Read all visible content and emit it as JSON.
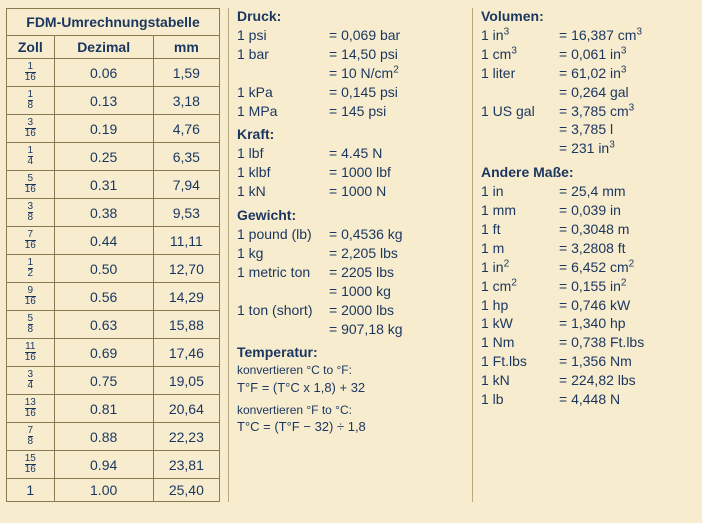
{
  "table": {
    "title": "FDM-Umrechnungstabelle",
    "columns": [
      "Zoll",
      "Dezimal",
      "mm"
    ],
    "rows": [
      {
        "num": "1",
        "den": "16",
        "dec": "0.06",
        "mm": "1,59"
      },
      {
        "num": "1",
        "den": "8",
        "dec": "0.13",
        "mm": "3,18"
      },
      {
        "num": "3",
        "den": "16",
        "dec": "0.19",
        "mm": "4,76"
      },
      {
        "num": "1",
        "den": "4",
        "dec": "0.25",
        "mm": "6,35"
      },
      {
        "num": "5",
        "den": "16",
        "dec": "0.31",
        "mm": "7,94"
      },
      {
        "num": "3",
        "den": "8",
        "dec": "0.38",
        "mm": "9,53"
      },
      {
        "num": "7",
        "den": "16",
        "dec": "0.44",
        "mm": "11,11"
      },
      {
        "num": "1",
        "den": "2",
        "dec": "0.50",
        "mm": "12,70"
      },
      {
        "num": "9",
        "den": "16",
        "dec": "0.56",
        "mm": "14,29"
      },
      {
        "num": "5",
        "den": "8",
        "dec": "0.63",
        "mm": "15,88"
      },
      {
        "num": "11",
        "den": "16",
        "dec": "0.69",
        "mm": "17,46"
      },
      {
        "num": "3",
        "den": "4",
        "dec": "0.75",
        "mm": "19,05"
      },
      {
        "num": "13",
        "den": "16",
        "dec": "0.81",
        "mm": "20,64"
      },
      {
        "num": "7",
        "den": "8",
        "dec": "0.88",
        "mm": "22,23"
      },
      {
        "num": "15",
        "den": "16",
        "dec": "0.94",
        "mm": "23,81"
      },
      {
        "whole": "1",
        "dec": "1.00",
        "mm": "25,40"
      }
    ]
  },
  "col2": {
    "druck": {
      "title": "Druck:",
      "rows": [
        {
          "l": "1 psi",
          "r": "= 0,069 bar"
        },
        {
          "l": "1 bar",
          "r": "= 14,50 psi"
        },
        {
          "l": "",
          "r": "= 10 N/cm²"
        },
        {
          "l": "1 kPa",
          "r": "= 0,145 psi"
        },
        {
          "l": "1 MPa",
          "r": "= 145 psi"
        }
      ]
    },
    "kraft": {
      "title": "Kraft:",
      "rows": [
        {
          "l": "1 lbf",
          "r": "= 4.45 N"
        },
        {
          "l": "1 klbf",
          "r": "= 1000 lbf"
        },
        {
          "l": "1 kN",
          "r": "= 1000 N"
        }
      ]
    },
    "gewicht": {
      "title": "Gewicht:",
      "rows": [
        {
          "l": "1 pound (lb)",
          "r": "= 0,4536 kg"
        },
        {
          "l": "1 kg",
          "r": "= 2,205 lbs"
        },
        {
          "l": "1 metric ton",
          "r": "= 2205 lbs"
        },
        {
          "l": "",
          "r": "= 1000 kg"
        },
        {
          "l": "1 ton (short)",
          "r": "= 2000 lbs"
        },
        {
          "l": "",
          "r": "= 907,18 kg"
        }
      ]
    },
    "temp": {
      "title": "Temperatur:",
      "conv1_label": "konvertieren  °C to °F:",
      "conv1_formula": "T°F = (T°C x 1,8) + 32",
      "conv2_label": "konvertieren  °F to °C:",
      "conv2_formula": "T°C = (T°F − 32) ÷ 1,8"
    }
  },
  "col3": {
    "volumen": {
      "title": "Volumen:",
      "rows": [
        {
          "l": "1 in³",
          "r": "= 16,387 cm³"
        },
        {
          "l": "1 cm³",
          "r": "= 0,061 in³"
        },
        {
          "l": "1 liter",
          "r": "= 61,02 in³"
        },
        {
          "l": "",
          "r": "= 0,264 gal"
        },
        {
          "l": "1 US gal",
          "r": "= 3,785 cm³"
        },
        {
          "l": "",
          "r": "= 3,785 l"
        },
        {
          "l": "",
          "r": "= 231 in³"
        }
      ]
    },
    "andere": {
      "title": "Andere Maße:",
      "rows": [
        {
          "l": "1 in",
          "r": "= 25,4 mm"
        },
        {
          "l": "1 mm",
          "r": "= 0,039 in"
        },
        {
          "l": "1 ft",
          "r": "= 0,3048 m"
        },
        {
          "l": "1 m",
          "r": "= 3,2808 ft"
        },
        {
          "l": "1 in²",
          "r": "= 6,452 cm²"
        },
        {
          "l": "1 cm²",
          "r": "= 0,155 in²"
        },
        {
          "l": "1 hp",
          "r": "= 0,746 kW"
        },
        {
          "l": "1 kW",
          "r": "= 1,340 hp"
        },
        {
          "l": "1 Nm",
          "r": "= 0,738 Ft.lbs"
        },
        {
          "l": "1 Ft.lbs",
          "r": "= 1,356 Nm"
        },
        {
          "l": "1 kN",
          "r": "= 224,82 lbs"
        },
        {
          "l": "1 lb",
          "r": "= 4,448 N"
        }
      ]
    }
  }
}
